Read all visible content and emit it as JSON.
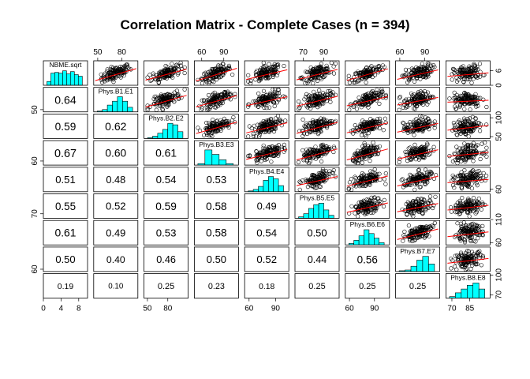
{
  "chart_data": {
    "type": "scatter",
    "title": "Correlation Matrix - Complete Cases (n = 394)",
    "n": 394,
    "variables": [
      "NBME.sqrt",
      "Phys.B1.E1",
      "Phys.B2.E2",
      "Phys.B3.E3",
      "Phys.B4.E4",
      "Phys.B5.E5",
      "Phys.B6.E6",
      "Phys.B7.E7",
      "Phys.B8.E8"
    ],
    "ranges": [
      [
        0,
        10
      ],
      [
        45,
        100
      ],
      [
        45,
        110
      ],
      [
        50,
        110
      ],
      [
        55,
        105
      ],
      [
        62,
        105
      ],
      [
        55,
        108
      ],
      [
        55,
        108
      ],
      [
        65,
        102
      ]
    ],
    "correlations": [
      [
        null
      ],
      [
        "0.64"
      ],
      [
        "0.59",
        "0.62"
      ],
      [
        "0.67",
        "0.60",
        "0.61"
      ],
      [
        "0.51",
        "0.48",
        "0.54",
        "0.53"
      ],
      [
        "0.55",
        "0.52",
        "0.59",
        "0.58",
        "0.49"
      ],
      [
        "0.61",
        "0.49",
        "0.53",
        "0.58",
        "0.54",
        "0.50"
      ],
      [
        "0.50",
        "0.40",
        "0.46",
        "0.50",
        "0.52",
        "0.44",
        "0.56"
      ],
      [
        "0.19",
        "0.10",
        "0.25",
        "0.23",
        "0.18",
        "0.25",
        "0.25",
        "0.25"
      ]
    ],
    "histograms": [
      [
        0.25,
        0.8,
        0.85,
        0.8,
        0.95,
        0.75,
        0.9,
        0.7,
        0.6
      ],
      [
        0.05,
        0.15,
        0.45,
        0.7,
        1.0,
        0.7,
        0.3
      ],
      [
        0.05,
        0.15,
        0.35,
        0.6,
        1.0,
        0.9,
        0.45
      ],
      [
        0.1,
        1.0,
        0.7,
        0.35,
        0.1
      ],
      [
        0.05,
        0.15,
        0.35,
        0.75,
        1.0,
        0.85,
        0.4
      ],
      [
        0.1,
        0.3,
        0.65,
        0.9,
        1.0,
        0.55,
        0.2
      ],
      [
        0.1,
        0.3,
        0.6,
        1.0,
        0.75,
        0.45,
        0.15
      ],
      [
        0.05,
        0.1,
        0.35,
        0.75,
        1.0,
        0.5
      ],
      [
        0.1,
        0.35,
        0.6,
        0.85,
        1.0,
        0.6
      ]
    ],
    "axes": {
      "top": [
        {
          "col": 1,
          "ticks": [
            50,
            80
          ],
          "labels": [
            "50",
            "80"
          ]
        },
        {
          "col": 3,
          "ticks": [
            60,
            90
          ],
          "labels": [
            "60",
            "90"
          ]
        },
        {
          "col": 5,
          "ticks": [
            70,
            90
          ],
          "labels": [
            "70",
            "90"
          ]
        },
        {
          "col": 7,
          "ticks": [
            60,
            90
          ],
          "labels": [
            "60",
            "90"
          ]
        }
      ],
      "bottom": [
        {
          "col": 0,
          "ticks": [
            0,
            4,
            8
          ],
          "labels": [
            "0",
            "4",
            "8"
          ]
        },
        {
          "col": 2,
          "ticks": [
            50,
            80
          ],
          "labels": [
            "50",
            "80"
          ]
        },
        {
          "col": 4,
          "ticks": [
            60,
            90
          ],
          "labels": [
            "60",
            "90"
          ]
        },
        {
          "col": 6,
          "ticks": [
            60,
            90
          ],
          "labels": [
            "60",
            "90"
          ]
        },
        {
          "col": 8,
          "ticks": [
            70,
            85
          ],
          "labels": [
            "70",
            "85"
          ]
        }
      ],
      "left": [
        {
          "row": 1,
          "ticks": [
            50
          ],
          "labels": [
            "50"
          ]
        },
        {
          "row": 3,
          "ticks": [
            60
          ],
          "labels": [
            "60"
          ]
        },
        {
          "row": 5,
          "ticks": [
            70
          ],
          "labels": [
            "70"
          ]
        },
        {
          "row": 7,
          "ticks": [
            60
          ],
          "labels": [
            "60"
          ]
        }
      ],
      "right": [
        {
          "row": 0,
          "ticks": [
            0,
            6
          ],
          "labels": [
            "0",
            "6"
          ]
        },
        {
          "row": 2,
          "ticks": [
            50,
            100
          ],
          "labels": [
            "50",
            "100"
          ]
        },
        {
          "row": 4,
          "ticks": [
            60
          ],
          "labels": [
            "60"
          ]
        },
        {
          "row": 6,
          "ticks": [
            60,
            110
          ],
          "labels": [
            "60",
            "110"
          ]
        },
        {
          "row": 8,
          "ticks": [
            70,
            100
          ],
          "labels": [
            "70",
            "100"
          ]
        }
      ]
    },
    "hist_color": "#00ffff",
    "point_color": "#000000",
    "smooth_color": "#ff0000",
    "grid": false,
    "legend": "none"
  }
}
